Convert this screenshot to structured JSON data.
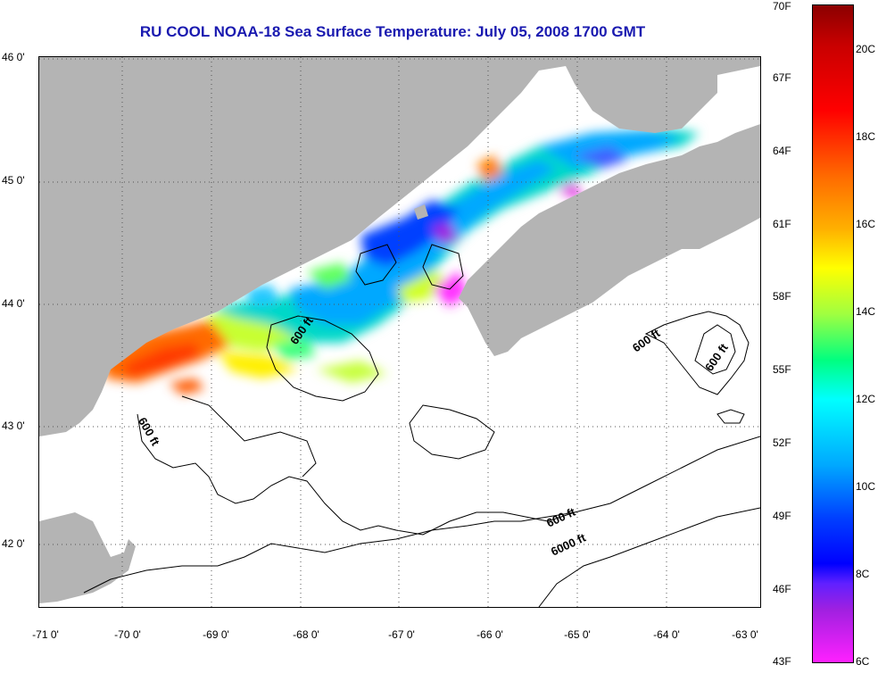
{
  "title": "RU COOL  NOAA-18  Sea Surface Temperature:  July 05, 2008 1700 GMT",
  "latitude_labels": [
    "46 0'",
    "45 0'",
    "44 0'",
    "43 0'",
    "42 0'"
  ],
  "longitude_labels": [
    "-71 0'",
    "-70 0'",
    "-69 0'",
    "-68 0'",
    "-67 0'",
    "-66 0'",
    "-65 0'",
    "-64 0'",
    "-63 0'"
  ],
  "contour_labels": [
    "600 ft",
    "600 ft",
    "600 ft",
    "600 ft",
    "600 ft",
    "6000 ft"
  ],
  "colorbar": {
    "fahrenheit_labels": [
      "70F",
      "67F",
      "64F",
      "61F",
      "58F",
      "55F",
      "52F",
      "49F",
      "46F",
      "43F"
    ],
    "celsius_labels": [
      "20C",
      "18C",
      "16C",
      "14C",
      "12C",
      "10C",
      "8C",
      "6C"
    ]
  },
  "colors": {
    "land": "#b4b4b4",
    "ocean_no_data": "#ffffff",
    "title": "#1a1ab0"
  }
}
